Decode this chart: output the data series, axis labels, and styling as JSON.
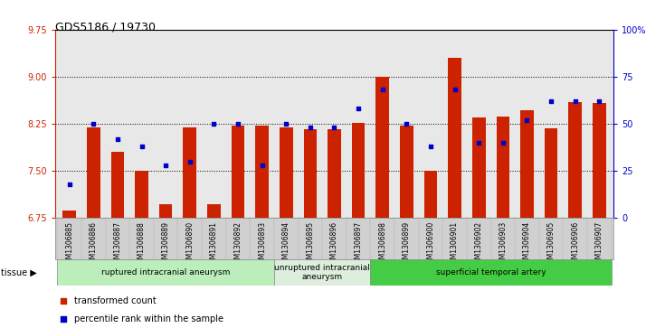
{
  "title": "GDS5186 / 19730",
  "samples": [
    "GSM1306885",
    "GSM1306886",
    "GSM1306887",
    "GSM1306888",
    "GSM1306889",
    "GSM1306890",
    "GSM1306891",
    "GSM1306892",
    "GSM1306893",
    "GSM1306894",
    "GSM1306895",
    "GSM1306896",
    "GSM1306897",
    "GSM1306898",
    "GSM1306899",
    "GSM1306900",
    "GSM1306901",
    "GSM1306902",
    "GSM1306903",
    "GSM1306904",
    "GSM1306905",
    "GSM1306906",
    "GSM1306907"
  ],
  "bar_values": [
    6.87,
    8.2,
    7.8,
    7.5,
    6.97,
    8.2,
    6.97,
    8.22,
    8.22,
    8.2,
    8.17,
    8.17,
    8.27,
    9.0,
    8.22,
    7.5,
    9.3,
    8.35,
    8.37,
    8.47,
    8.18,
    8.6,
    8.58
  ],
  "percentile_values": [
    18,
    50,
    42,
    38,
    28,
    30,
    50,
    50,
    28,
    50,
    48,
    48,
    58,
    68,
    50,
    38,
    68,
    40,
    40,
    52,
    62,
    62,
    62
  ],
  "ylim_left": [
    6.75,
    9.75
  ],
  "ylim_right": [
    0,
    100
  ],
  "yticks_left": [
    6.75,
    7.5,
    8.25,
    9.0,
    9.75
  ],
  "yticks_right": [
    0,
    25,
    50,
    75,
    100
  ],
  "ytick_labels_right": [
    "0",
    "25",
    "50",
    "75",
    "100%"
  ],
  "bar_color": "#CC2200",
  "scatter_color": "#0000CC",
  "plot_bg_color": "#E8E8E8",
  "xtick_bg_color": "#D0D0D0",
  "tissue_groups": [
    {
      "label": "ruptured intracranial aneurysm",
      "start": 0,
      "end": 9,
      "color": "#BBEEBB"
    },
    {
      "label": "unruptured intracranial\naneurysm",
      "start": 9,
      "end": 13,
      "color": "#DDEEDD"
    },
    {
      "label": "superficial temporal artery",
      "start": 13,
      "end": 23,
      "color": "#44CC44"
    }
  ],
  "tissue_label": "tissue",
  "legend_items": [
    {
      "label": "transformed count",
      "color": "#CC2200"
    },
    {
      "label": "percentile rank within the sample",
      "color": "#0000CC"
    }
  ],
  "grid_dotted_values": [
    7.5,
    8.25,
    9.0
  ]
}
